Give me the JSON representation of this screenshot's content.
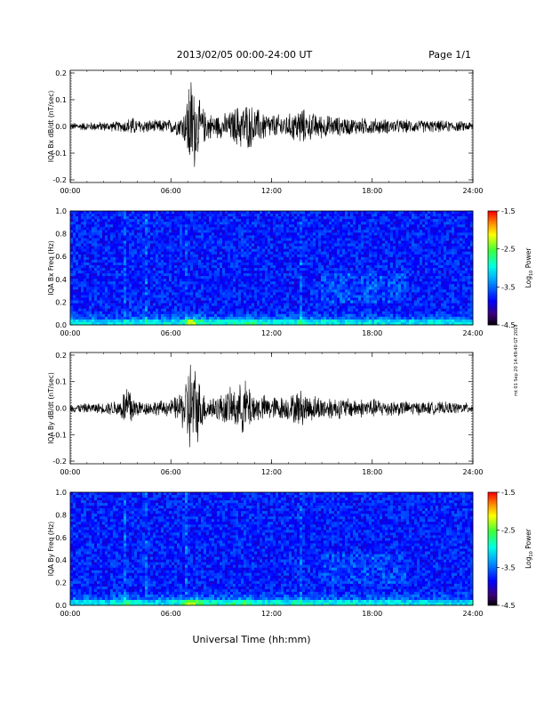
{
  "header": {
    "date_range": "2013/02/05  00:00-24:00 UT",
    "page": "Page 1/1"
  },
  "xlabel": "Universal Time (hh:mm)",
  "side_note": "mt 01 Sep 20 14:49:40 GT 2019",
  "chart_data": [
    {
      "type": "line",
      "title": "",
      "ylabel": "IQA Bx dB/dt (nT/sec)",
      "xlim": [
        0,
        24
      ],
      "ylim": [
        -0.21,
        0.21
      ],
      "x_ticks": [
        "00:00",
        "06:00",
        "12:00",
        "18:00",
        "24:00"
      ],
      "y_ticks": [
        "0.2",
        "0.1",
        "0.0",
        "-0.1",
        "-0.2"
      ],
      "y_tick_values": [
        0.2,
        0.1,
        0.0,
        -0.1,
        -0.2
      ],
      "envelope": {
        "x_hours": [
          0,
          1,
          2,
          3,
          3.4,
          3.6,
          4,
          4.5,
          5,
          6,
          6.5,
          6.9,
          7.05,
          7.2,
          7.35,
          7.6,
          8,
          8.5,
          9,
          9.5,
          10,
          10.5,
          11,
          12,
          13,
          13.5,
          13.8,
          14,
          15,
          16,
          17,
          18,
          19,
          20,
          21,
          22,
          23,
          24
        ],
        "amplitude": [
          0.015,
          0.018,
          0.02,
          0.022,
          0.03,
          0.045,
          0.028,
          0.03,
          0.026,
          0.03,
          0.04,
          0.08,
          0.2,
          0.21,
          0.2,
          0.12,
          0.07,
          0.05,
          0.05,
          0.06,
          0.09,
          0.1,
          0.08,
          0.05,
          0.05,
          0.07,
          0.09,
          0.06,
          0.05,
          0.04,
          0.035,
          0.035,
          0.03,
          0.028,
          0.026,
          0.025,
          0.022,
          0.02
        ]
      }
    },
    {
      "type": "heatmap",
      "title": "",
      "ylabel": "IQA Bx Freq (Hz)",
      "xlim": [
        0,
        24
      ],
      "ylim": [
        0,
        1.0
      ],
      "x_ticks": [
        "00:00",
        "06:00",
        "12:00",
        "18:00",
        "24:00"
      ],
      "y_ticks": [
        "1.0",
        "0.8",
        "0.6",
        "0.4",
        "0.2",
        "0.0"
      ],
      "y_tick_values": [
        1.0,
        0.8,
        0.6,
        0.4,
        0.2,
        0.0
      ],
      "colorbar": {
        "label": "Log10 Power",
        "label_base": "Log",
        "label_sub": "10",
        "label_rest": " Power",
        "range": [
          -4.5,
          -1.5
        ],
        "ticks": [
          "-1.5",
          "-2.5",
          "-3.5",
          "-4.5"
        ],
        "tick_values": [
          -1.5,
          -2.5,
          -3.5,
          -4.5
        ]
      }
    },
    {
      "type": "line",
      "title": "",
      "ylabel": "IQA By dB/dt (nT/sec)",
      "xlim": [
        0,
        24
      ],
      "ylim": [
        -0.21,
        0.21
      ],
      "x_ticks": [
        "00:00",
        "06:00",
        "12:00",
        "18:00",
        "24:00"
      ],
      "y_ticks": [
        "0.2",
        "0.1",
        "0.0",
        "-0.1",
        "-0.2"
      ],
      "y_tick_values": [
        0.2,
        0.1,
        0.0,
        -0.1,
        -0.2
      ],
      "envelope": {
        "x_hours": [
          0,
          1,
          2,
          3,
          3.3,
          3.5,
          3.8,
          4.2,
          5,
          6,
          6.5,
          6.9,
          7.05,
          7.2,
          7.35,
          7.6,
          8,
          8.5,
          9,
          9.5,
          10,
          10.5,
          11,
          12,
          13,
          13.5,
          13.8,
          14,
          15,
          16,
          17,
          18,
          19,
          20,
          21,
          22,
          23,
          24
        ],
        "amplitude": [
          0.018,
          0.02,
          0.022,
          0.04,
          0.1,
          0.12,
          0.05,
          0.03,
          0.03,
          0.035,
          0.06,
          0.12,
          0.21,
          0.21,
          0.2,
          0.14,
          0.06,
          0.05,
          0.06,
          0.08,
          0.09,
          0.12,
          0.06,
          0.05,
          0.05,
          0.07,
          0.08,
          0.06,
          0.05,
          0.045,
          0.04,
          0.04,
          0.035,
          0.03,
          0.028,
          0.026,
          0.024,
          0.022
        ]
      }
    },
    {
      "type": "heatmap",
      "title": "",
      "ylabel": "IQA By Freq (Hz)",
      "xlim": [
        0,
        24
      ],
      "ylim": [
        0,
        1.0
      ],
      "x_ticks": [
        "00:00",
        "06:00",
        "12:00",
        "18:00",
        "24:00"
      ],
      "y_ticks": [
        "1.0",
        "0.8",
        "0.6",
        "0.4",
        "0.2",
        "0.0"
      ],
      "y_tick_values": [
        1.0,
        0.8,
        0.6,
        0.4,
        0.2,
        0.0
      ],
      "colorbar": {
        "label": "Log10 Power",
        "label_base": "Log",
        "label_sub": "10",
        "label_rest": " Power",
        "range": [
          -4.5,
          -1.5
        ],
        "ticks": [
          "-1.5",
          "-2.5",
          "-3.5",
          "-4.5"
        ],
        "tick_values": [
          -1.5,
          -2.5,
          -3.5,
          -4.5
        ]
      }
    }
  ]
}
